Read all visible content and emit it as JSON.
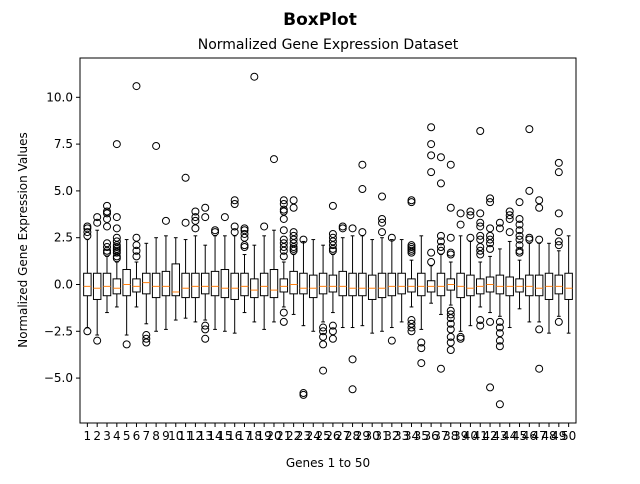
{
  "chart_data": {
    "type": "box",
    "suptitle": "BoxPlot",
    "title": "Normalized Gene Expression Dataset",
    "xlabel": "Genes 1 to 50",
    "ylabel": "Normalized Gene Expression Values",
    "ylim": [
      -7.4,
      12.1
    ],
    "yticks": [
      -5.0,
      -2.5,
      0.0,
      2.5,
      5.0,
      7.5,
      10.0
    ],
    "ytick_labels": [
      "−5.0",
      "−2.5",
      "0.0",
      "2.5",
      "5.0",
      "7.5",
      "10.0"
    ],
    "grid": false,
    "median_color": "#ff7f0e",
    "box_color": "#000000",
    "categories": [
      "1",
      "2",
      "3",
      "4",
      "5",
      "6",
      "7",
      "8",
      "9",
      "10",
      "11",
      "12",
      "13",
      "14",
      "15",
      "16",
      "17",
      "18",
      "19",
      "20",
      "21",
      "22",
      "23",
      "24",
      "25",
      "26",
      "27",
      "28",
      "29",
      "30",
      "31",
      "32",
      "33",
      "34",
      "35",
      "36",
      "37",
      "38",
      "39",
      "40",
      "41",
      "42",
      "43",
      "44",
      "45",
      "46",
      "47",
      "48",
      "49",
      "50"
    ],
    "boxes": [
      {
        "q1": -0.6,
        "median": -0.1,
        "q3": 0.6,
        "whisker_low": -2.3,
        "whisker_high": 2.4,
        "outliers": [
          3.1,
          3.0,
          2.8,
          2.6,
          -2.5
        ]
      },
      {
        "q1": -0.8,
        "median": -0.2,
        "q3": 0.6,
        "whisker_low": -2.7,
        "whisker_high": 2.9,
        "outliers": [
          3.6,
          3.3,
          -3.0
        ]
      },
      {
        "q1": -0.6,
        "median": -0.1,
        "q3": 0.6,
        "whisker_low": -1.5,
        "whisker_high": 1.5,
        "outliers": [
          4.2,
          3.9,
          3.8,
          3.5,
          3.1,
          2.2,
          2.0,
          1.8,
          1.7
        ]
      },
      {
        "q1": -0.5,
        "median": -0.2,
        "q3": 0.3,
        "whisker_low": -1.2,
        "whisker_high": 1.2,
        "outliers": [
          7.5,
          3.6,
          3.0,
          2.5,
          2.3,
          2.1,
          2.0,
          1.9,
          1.8,
          1.7,
          1.5,
          1.4
        ]
      },
      {
        "q1": -0.6,
        "median": 0.0,
        "q3": 0.8,
        "whisker_low": -2.7,
        "whisker_high": 2.4,
        "outliers": [
          -3.2
        ]
      },
      {
        "q1": -0.4,
        "median": -0.1,
        "q3": 0.3,
        "whisker_low": -1.2,
        "whisker_high": 1.2,
        "outliers": [
          10.6,
          2.5,
          2.1,
          1.8,
          1.5
        ]
      },
      {
        "q1": -0.5,
        "median": 0.1,
        "q3": 0.6,
        "whisker_low": -2.1,
        "whisker_high": 2.2,
        "outliers": [
          -2.7,
          -2.9,
          -3.1
        ]
      },
      {
        "q1": -0.7,
        "median": -0.1,
        "q3": 0.6,
        "whisker_low": -2.5,
        "whisker_high": 2.5,
        "outliers": [
          7.4
        ]
      },
      {
        "q1": -0.6,
        "median": -0.1,
        "q3": 0.7,
        "whisker_low": -2.4,
        "whisker_high": 2.6,
        "outliers": [
          3.4
        ]
      },
      {
        "q1": -0.6,
        "median": -0.4,
        "q3": 1.1,
        "whisker_low": -1.9,
        "whisker_high": 2.5,
        "outliers": []
      },
      {
        "q1": -0.7,
        "median": -0.2,
        "q3": 0.6,
        "whisker_low": -1.8,
        "whisker_high": 2.4,
        "outliers": [
          5.7,
          3.3
        ]
      },
      {
        "q1": -0.7,
        "median": -0.1,
        "q3": 0.6,
        "whisker_low": -2.0,
        "whisker_high": 2.6,
        "outliers": [
          3.9,
          3.6,
          3.4,
          3.0
        ]
      },
      {
        "q1": -0.5,
        "median": -0.1,
        "q3": 0.6,
        "whisker_low": -1.9,
        "whisker_high": 2.1,
        "outliers": [
          4.1,
          3.6,
          -2.2,
          -2.4,
          -2.9
        ]
      },
      {
        "q1": -0.6,
        "median": -0.1,
        "q3": 0.7,
        "whisker_low": -2.4,
        "whisker_high": 2.6,
        "outliers": [
          2.9,
          2.8
        ]
      },
      {
        "q1": -0.7,
        "median": -0.2,
        "q3": 0.8,
        "whisker_low": -2.5,
        "whisker_high": 2.6,
        "outliers": [
          3.6
        ]
      },
      {
        "q1": -0.8,
        "median": -0.2,
        "q3": 0.6,
        "whisker_low": -2.6,
        "whisker_high": 2.6,
        "outliers": [
          4.5,
          4.3,
          3.1,
          2.8
        ]
      },
      {
        "q1": -0.6,
        "median": -0.1,
        "q3": 0.6,
        "whisker_low": -1.5,
        "whisker_high": 1.6,
        "outliers": [
          3.0,
          2.9,
          2.7,
          2.5,
          2.1,
          2.0
        ]
      },
      {
        "q1": -0.7,
        "median": -0.3,
        "q3": 0.3,
        "whisker_low": -2.0,
        "whisker_high": 2.1,
        "outliers": [
          11.1
        ]
      },
      {
        "q1": -0.6,
        "median": -0.1,
        "q3": 0.6,
        "whisker_low": -2.4,
        "whisker_high": 2.6,
        "outliers": [
          3.1
        ]
      },
      {
        "q1": -0.7,
        "median": -0.3,
        "q3": 0.8,
        "whisker_low": -2.0,
        "whisker_high": 2.9,
        "outliers": [
          6.7
        ]
      },
      {
        "q1": -0.4,
        "median": -0.1,
        "q3": 0.3,
        "whisker_low": -1.2,
        "whisker_high": 1.2,
        "outliers": [
          4.5,
          4.3,
          4.0,
          3.9,
          3.5,
          2.9,
          2.4,
          2.2,
          2.0,
          1.8,
          1.5,
          -1.5,
          -2.0
        ]
      },
      {
        "q1": -0.5,
        "median": 0.0,
        "q3": 0.7,
        "whisker_low": -1.6,
        "whisker_high": 1.6,
        "outliers": [
          4.5,
          4.1,
          2.8,
          2.6,
          2.4,
          2.2,
          2.0,
          1.9,
          1.8
        ]
      },
      {
        "q1": -0.5,
        "median": -0.2,
        "q3": 0.6,
        "whisker_low": -2.2,
        "whisker_high": 2.3,
        "outliers": [
          2.4,
          -5.8,
          -5.9
        ]
      },
      {
        "q1": -0.7,
        "median": -0.2,
        "q3": 0.5,
        "whisker_low": -2.5,
        "whisker_high": 2.4,
        "outliers": []
      },
      {
        "q1": -0.5,
        "median": -0.1,
        "q3": 0.6,
        "whisker_low": -2.0,
        "whisker_high": 2.1,
        "outliers": [
          -2.3,
          -2.5,
          -2.8,
          -3.2,
          -4.6
        ]
      },
      {
        "q1": -0.4,
        "median": -0.1,
        "q3": 0.5,
        "whisker_low": -1.5,
        "whisker_high": 1.6,
        "outliers": [
          4.2,
          2.7,
          2.5,
          2.3,
          2.1,
          1.9,
          1.8,
          -2.2,
          -2.5,
          -2.9
        ]
      },
      {
        "q1": -0.6,
        "median": -0.1,
        "q3": 0.7,
        "whisker_low": -2.3,
        "whisker_high": 2.5,
        "outliers": [
          3.1,
          3.0
        ]
      },
      {
        "q1": -0.6,
        "median": -0.2,
        "q3": 0.6,
        "whisker_low": -2.3,
        "whisker_high": 2.6,
        "outliers": [
          3.0,
          -4.0,
          -5.6
        ]
      },
      {
        "q1": -0.6,
        "median": -0.2,
        "q3": 0.6,
        "whisker_low": -2.2,
        "whisker_high": 2.6,
        "outliers": [
          6.4,
          5.1,
          2.8
        ]
      },
      {
        "q1": -0.8,
        "median": -0.2,
        "q3": 0.5,
        "whisker_low": -2.6,
        "whisker_high": 2.4,
        "outliers": []
      },
      {
        "q1": -0.7,
        "median": -0.2,
        "q3": 0.6,
        "whisker_low": -2.5,
        "whisker_high": 2.5,
        "outliers": [
          4.7,
          3.5,
          3.3,
          2.8
        ]
      },
      {
        "q1": -0.6,
        "median": -0.1,
        "q3": 0.6,
        "whisker_low": -2.3,
        "whisker_high": 2.4,
        "outliers": [
          2.5,
          -3.0
        ]
      },
      {
        "q1": -0.5,
        "median": -0.1,
        "q3": 0.6,
        "whisker_low": -2.0,
        "whisker_high": 2.4,
        "outliers": []
      },
      {
        "q1": -0.4,
        "median": -0.1,
        "q3": 0.3,
        "whisker_low": -1.2,
        "whisker_high": 1.3,
        "outliers": [
          4.5,
          4.4,
          2.1,
          2.0,
          1.9,
          1.8,
          1.7,
          -1.9,
          -2.1,
          -2.3,
          -2.5
        ]
      },
      {
        "q1": -0.6,
        "median": -0.1,
        "q3": 0.6,
        "whisker_low": -2.4,
        "whisker_high": 2.6,
        "outliers": [
          -3.1,
          -3.4,
          -4.2
        ]
      },
      {
        "q1": -0.4,
        "median": -0.1,
        "q3": 0.2,
        "whisker_low": -1.0,
        "whisker_high": 1.0,
        "outliers": [
          8.4,
          7.5,
          6.9,
          6.0,
          1.7,
          1.2
        ]
      },
      {
        "q1": -0.6,
        "median": -0.1,
        "q3": 0.6,
        "whisker_low": -1.6,
        "whisker_high": 1.6,
        "outliers": [
          6.8,
          5.4,
          2.6,
          2.3,
          2.0,
          1.8,
          -4.5
        ]
      },
      {
        "q1": -0.3,
        "median": 0.0,
        "q3": 0.3,
        "whisker_low": -1.1,
        "whisker_high": 1.2,
        "outliers": [
          6.4,
          4.1,
          2.5,
          1.7,
          1.6,
          -1.4,
          -1.6,
          -1.8,
          -2.1,
          -2.4,
          -2.8,
          -3.1,
          -3.5
        ]
      },
      {
        "q1": -0.7,
        "median": -0.1,
        "q3": 0.6,
        "whisker_low": -2.5,
        "whisker_high": 2.6,
        "outliers": [
          3.8,
          3.2,
          -2.8,
          -2.9
        ]
      },
      {
        "q1": -0.6,
        "median": -0.2,
        "q3": 0.5,
        "whisker_low": -2.2,
        "whisker_high": 2.3,
        "outliers": [
          3.9,
          3.7,
          2.5
        ]
      },
      {
        "q1": -0.5,
        "median": -0.1,
        "q3": 0.3,
        "whisker_low": -1.2,
        "whisker_high": 1.2,
        "outliers": [
          8.2,
          3.8,
          3.3,
          3.1,
          2.6,
          2.4,
          2.0,
          1.8,
          1.6,
          -1.9,
          -2.2
        ]
      },
      {
        "q1": -0.4,
        "median": 0.0,
        "q3": 0.4,
        "whisker_low": -1.5,
        "whisker_high": 1.5,
        "outliers": [
          4.6,
          4.4,
          3.0,
          2.6,
          2.4,
          2.2,
          1.9,
          -2.0,
          -5.5
        ]
      },
      {
        "q1": -0.5,
        "median": -0.1,
        "q3": 0.5,
        "whisker_low": -1.7,
        "whisker_high": 1.9,
        "outliers": [
          3.3,
          3.0,
          -2.0,
          -2.3,
          -2.6,
          -3.0,
          -3.3,
          -6.4
        ]
      },
      {
        "q1": -0.6,
        "median": -0.1,
        "q3": 0.4,
        "whisker_low": -2.3,
        "whisker_high": 2.3,
        "outliers": [
          3.9,
          3.7,
          3.5,
          2.8
        ]
      },
      {
        "q1": -0.4,
        "median": -0.1,
        "q3": 0.3,
        "whisker_low": -1.3,
        "whisker_high": 1.3,
        "outliers": [
          4.4,
          3.5,
          3.2,
          2.9,
          2.6,
          2.4,
          2.1,
          1.8,
          1.7
        ]
      },
      {
        "q1": -0.6,
        "median": -0.1,
        "q3": 0.5,
        "whisker_low": -2.0,
        "whisker_high": 2.2,
        "outliers": [
          8.3,
          5.0,
          2.5,
          2.4
        ]
      },
      {
        "q1": -0.6,
        "median": -0.2,
        "q3": 0.5,
        "whisker_low": -2.0,
        "whisker_high": 2.2,
        "outliers": [
          4.5,
          4.1,
          2.4,
          -2.4,
          -4.5
        ]
      },
      {
        "q1": -0.8,
        "median": -0.1,
        "q3": 0.6,
        "whisker_low": -2.6,
        "whisker_high": 2.2,
        "outliers": []
      },
      {
        "q1": -0.5,
        "median": -0.1,
        "q3": 0.5,
        "whisker_low": -1.7,
        "whisker_high": 1.8,
        "outliers": [
          6.5,
          6.0,
          3.8,
          2.8,
          2.3,
          2.1,
          -2.0
        ]
      },
      {
        "q1": -0.8,
        "median": -0.2,
        "q3": 0.6,
        "whisker_low": -2.6,
        "whisker_high": 2.6,
        "outliers": []
      }
    ]
  }
}
